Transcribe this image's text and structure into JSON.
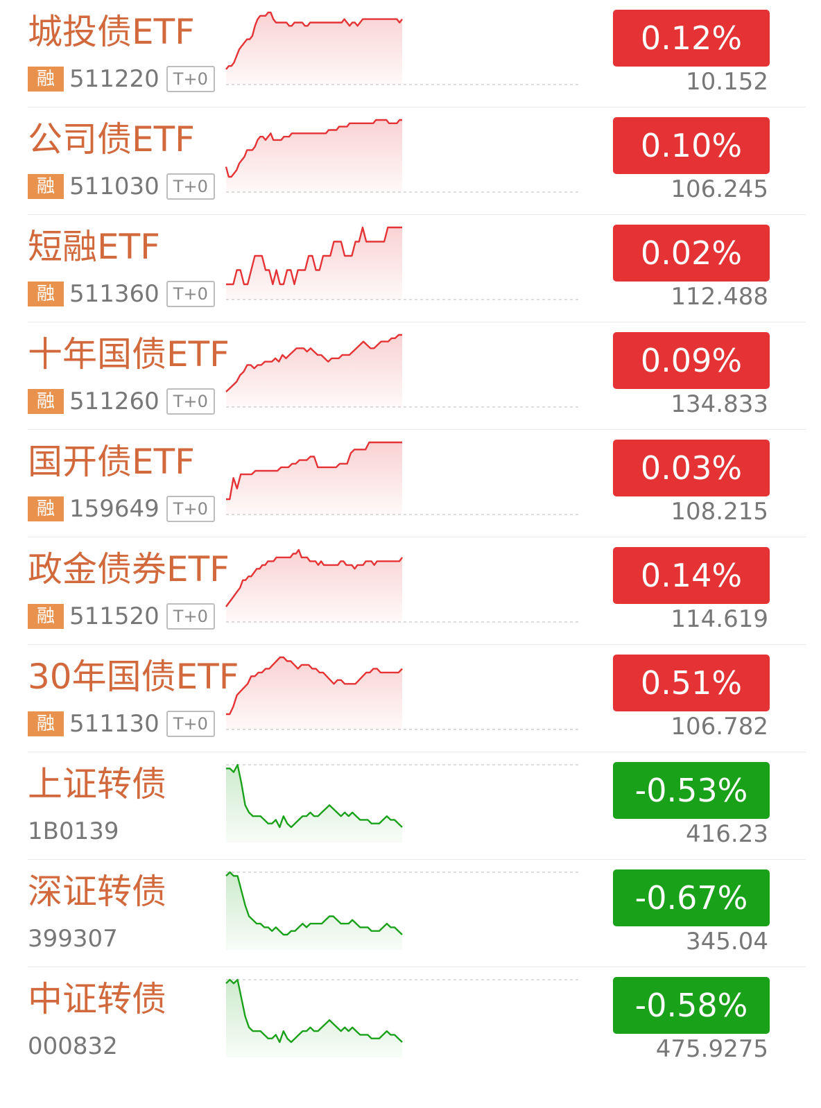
{
  "colors": {
    "up": "#e53335",
    "down": "#1aa11a",
    "name": "#d2693c",
    "tag": "#e8924e"
  },
  "rows": [
    {
      "name": "城投债ETF",
      "code": "511220",
      "margin_tag": "融",
      "t0_tag": "T+0",
      "change": "0.12%",
      "price": "10.152",
      "trend": "up",
      "spark": [
        0,
        1,
        1,
        2,
        4,
        6,
        7,
        8,
        9,
        9,
        10,
        13,
        15,
        16,
        16,
        16,
        17,
        17,
        15,
        14,
        14,
        14,
        14,
        14,
        13,
        13,
        14,
        14,
        14,
        14,
        13,
        13,
        14,
        14,
        14,
        14,
        14,
        14,
        14,
        14,
        14,
        14,
        14,
        14,
        14,
        15,
        14,
        13,
        14,
        14,
        13,
        14,
        15,
        15,
        15,
        15,
        15,
        15,
        15,
        15,
        15,
        15,
        15,
        15,
        15,
        15,
        14,
        15
      ]
    },
    {
      "name": "公司债ETF",
      "code": "511030",
      "margin_tag": "融",
      "t0_tag": "T+0",
      "change": "0.10%",
      "price": "106.245",
      "trend": "up",
      "spark": [
        3,
        0,
        0,
        1,
        2,
        4,
        5,
        6,
        8,
        8,
        8,
        9,
        11,
        12,
        12,
        11,
        12,
        13,
        11,
        11,
        11,
        11,
        12,
        12,
        12,
        13,
        13,
        13,
        13,
        13,
        13,
        13,
        13,
        13,
        13,
        13,
        13,
        13,
        13,
        14,
        14,
        14,
        14,
        15,
        15,
        15,
        15,
        16,
        16,
        16,
        16,
        16,
        16,
        16,
        16,
        16,
        16,
        17,
        17,
        17,
        17,
        17,
        16,
        16,
        16,
        16,
        17,
        17
      ]
    },
    {
      "name": "短融ETF",
      "code": "511360",
      "margin_tag": "融",
      "t0_tag": "T+0",
      "change": "0.02%",
      "price": "112.488",
      "trend": "up",
      "spark": [
        0,
        0,
        0,
        1,
        1,
        0,
        0,
        1,
        2,
        2,
        2,
        1,
        1,
        0,
        1,
        0,
        0,
        1,
        1,
        0,
        1,
        1,
        1,
        2,
        2,
        1,
        1,
        2,
        2,
        2,
        3,
        3,
        3,
        2,
        2,
        2,
        3,
        3,
        4,
        3,
        3,
        3,
        3,
        3,
        3,
        4,
        4,
        4,
        4,
        4
      ]
    },
    {
      "name": "十年国债ETF",
      "code": "511260",
      "margin_tag": "融",
      "t0_tag": "T+0",
      "change": "0.09%",
      "price": "134.833",
      "trend": "up",
      "spark": [
        0,
        1,
        2,
        3,
        5,
        6,
        8,
        8,
        7,
        8,
        8,
        9,
        9,
        9,
        10,
        9,
        11,
        10,
        11,
        12,
        13,
        13,
        13,
        12,
        13,
        12,
        11,
        11,
        10,
        9,
        10,
        10,
        10,
        11,
        11,
        11,
        12,
        13,
        14,
        15,
        14,
        13,
        13,
        14,
        15,
        15,
        15,
        16,
        16,
        17,
        17
      ]
    },
    {
      "name": "国开债ETF",
      "code": "159649",
      "margin_tag": "融",
      "t0_tag": "T+0",
      "change": "0.03%",
      "price": "108.215",
      "trend": "up",
      "spark": [
        0,
        0,
        6,
        3,
        7,
        7,
        7,
        7,
        8,
        8,
        8,
        8,
        8,
        8,
        8,
        9,
        9,
        9,
        10,
        10,
        11,
        11,
        11,
        12,
        12,
        9,
        9,
        9,
        9,
        9,
        9,
        10,
        10,
        10,
        13,
        14,
        14,
        14,
        14,
        16,
        16,
        16,
        16,
        16,
        16,
        16,
        16,
        16,
        16
      ]
    },
    {
      "name": "政金债券ETF",
      "code": "511520",
      "margin_tag": "融",
      "t0_tag": "T+0",
      "change": "0.14%",
      "price": "114.619",
      "trend": "up",
      "spark": [
        0,
        1,
        2,
        3,
        4,
        5,
        7,
        7,
        8,
        8,
        9,
        10,
        10,
        11,
        11,
        12,
        12,
        12,
        13,
        13,
        13,
        13,
        13,
        13,
        14,
        14,
        15,
        13,
        13,
        13,
        12,
        12,
        12,
        11,
        12,
        11,
        11,
        11,
        11,
        11,
        11,
        12,
        12,
        11,
        11,
        11,
        10,
        11,
        11,
        11,
        12,
        12,
        12,
        11,
        12,
        12,
        12,
        12,
        12,
        12,
        12,
        12,
        12,
        13
      ]
    },
    {
      "name": "30年国债ETF",
      "code": "511130",
      "margin_tag": "融",
      "t0_tag": "T+0",
      "change": "0.51%",
      "price": "106.782",
      "trend": "up",
      "spark": [
        0,
        0,
        2,
        5,
        6,
        7,
        8,
        10,
        10,
        11,
        11,
        12,
        12,
        13,
        14,
        15,
        15,
        14,
        14,
        13,
        12,
        13,
        13,
        13,
        12,
        12,
        11,
        11,
        10,
        9,
        8,
        9,
        9,
        8,
        8,
        8,
        8,
        9,
        10,
        11,
        11,
        12,
        12,
        11,
        11,
        11,
        11,
        11,
        11,
        12
      ]
    },
    {
      "name": "上证转债",
      "code": "1B0139",
      "change": "-0.53%",
      "price": "416.23",
      "trend": "down",
      "spark": [
        16,
        16,
        15,
        17,
        12,
        6,
        4,
        3,
        3,
        3,
        2,
        1,
        1,
        2,
        0,
        3,
        1,
        0,
        1,
        2,
        3,
        3,
        4,
        3,
        3,
        4,
        5,
        6,
        5,
        4,
        3,
        4,
        3,
        4,
        3,
        2,
        2,
        2,
        1,
        1,
        1,
        2,
        3,
        2,
        2,
        1,
        0
      ]
    },
    {
      "name": "深证转债",
      "code": "399307",
      "change": "-0.67%",
      "price": "345.04",
      "trend": "down",
      "spark": [
        16,
        17,
        16,
        16,
        12,
        8,
        5,
        4,
        3,
        3,
        2,
        2,
        1,
        2,
        1,
        0,
        0,
        1,
        1,
        2,
        3,
        2,
        3,
        3,
        3,
        3,
        4,
        5,
        5,
        4,
        3,
        3,
        3,
        4,
        3,
        2,
        2,
        2,
        1,
        1,
        1,
        2,
        3,
        2,
        2,
        1,
        0
      ]
    },
    {
      "name": "中证转债",
      "code": "000832",
      "change": "-0.58%",
      "price": "475.9275",
      "trend": "down",
      "spark": [
        16,
        17,
        16,
        17,
        12,
        7,
        4,
        3,
        3,
        3,
        2,
        1,
        1,
        2,
        0,
        3,
        1,
        0,
        1,
        2,
        3,
        3,
        4,
        3,
        3,
        4,
        5,
        6,
        5,
        4,
        3,
        4,
        3,
        4,
        3,
        2,
        2,
        2,
        1,
        1,
        1,
        2,
        3,
        2,
        2,
        1,
        0
      ]
    }
  ]
}
